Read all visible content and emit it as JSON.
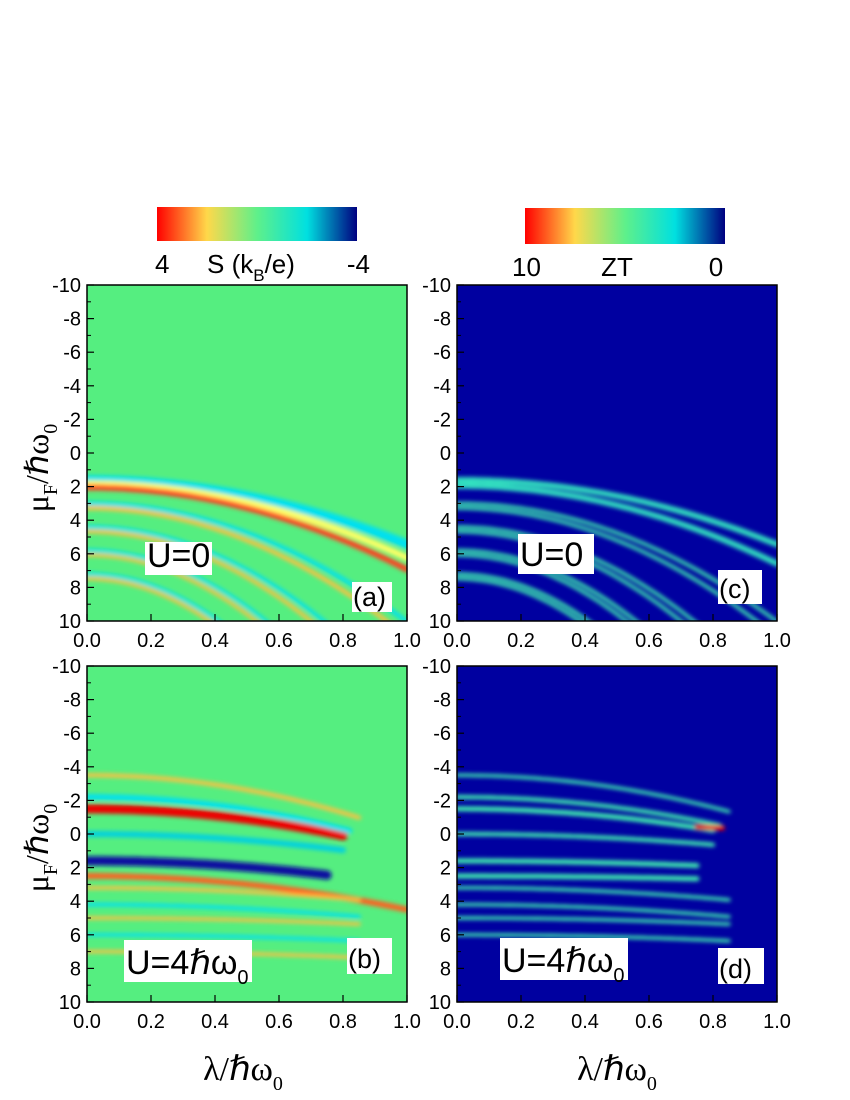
{
  "colorbars": [
    {
      "left_value": "4",
      "title_main": "S (k",
      "title_sub": "B",
      "title_end": "/e)",
      "right_value": "-4",
      "stops": [
        "#ff0000",
        "#ffd84a",
        "#5ff08a",
        "#00e0e0",
        "#000080"
      ]
    },
    {
      "left_value": "10",
      "title": "ZT",
      "right_value": "0",
      "stops": [
        "#ff0000",
        "#ffd84a",
        "#5ff08a",
        "#00e0e0",
        "#000080"
      ]
    }
  ],
  "axes": {
    "x_tick_labels": [
      "0.0",
      "0.2",
      "0.4",
      "0.6",
      "0.8",
      "1.0"
    ],
    "y_tick_labels": [
      "-10",
      "-8",
      "-6",
      "-4",
      "-2",
      "0",
      "2",
      "4",
      "6",
      "8",
      "10"
    ],
    "xlabel_main": "λ/ℏω",
    "xlabel_sub": "0",
    "ylabel_main": "μ",
    "ylabel_sub1": "F",
    "ylabel_mid": "/ℏω",
    "ylabel_sub2": "0"
  },
  "panels": [
    {
      "label": "(a)",
      "annotation_main": "U=0",
      "annotation_sub": ""
    },
    {
      "label": "(c)",
      "annotation_main": "U=0",
      "annotation_sub": ""
    },
    {
      "label": "(b)",
      "annotation_main": "U=4ℏω",
      "annotation_sub": "0"
    },
    {
      "label": "(d)",
      "annotation_main": "U=4ℏω",
      "annotation_sub": "0"
    }
  ],
  "chart_data": [
    {
      "type": "heatmap",
      "panel": "(a)",
      "quantity": "S (k_B/e)",
      "background": "#55ee80",
      "xlim": [
        0,
        1
      ],
      "ylim": [
        10,
        -10
      ],
      "bands": [
        {
          "n": 0,
          "color": "#00e0f0",
          "width": 0.55
        },
        {
          "n": 0.35,
          "color": "#ffff66",
          "width": 0.4
        },
        {
          "n": 0.65,
          "color": "#ff4020",
          "width": 0.35
        },
        {
          "n": 2,
          "color": "#00e0f0",
          "width": 0.25
        },
        {
          "n": 2.4,
          "color": "#ffc040",
          "width": 0.25
        },
        {
          "n": 4,
          "color": "#00e0f0",
          "width": 0.22
        },
        {
          "n": 4.4,
          "color": "#ffc040",
          "width": 0.22
        },
        {
          "n": 6,
          "color": "#00e0f0",
          "width": 0.2
        },
        {
          "n": 6.4,
          "color": "#ffc040",
          "width": 0.2
        },
        {
          "n": 8,
          "color": "#00e0f0",
          "width": 0.2
        },
        {
          "n": 8.4,
          "color": "#ffc040",
          "width": 0.2
        }
      ]
    },
    {
      "type": "heatmap",
      "panel": "(c)",
      "quantity": "ZT",
      "background": "#0000a0",
      "xlim": [
        0,
        1
      ],
      "ylim": [
        10,
        -10
      ],
      "bands": [
        {
          "n": 0,
          "color": "#30e0c0",
          "width": 0.35
        },
        {
          "n": 0.5,
          "color": "#30e0c0",
          "width": 0.35
        },
        {
          "n": 2,
          "color": "#40f0b0",
          "width": 0.2
        },
        {
          "n": 2.4,
          "color": "#40f0b0",
          "width": 0.2
        },
        {
          "n": 4,
          "color": "#40f0b0",
          "width": 0.2
        },
        {
          "n": 4.4,
          "color": "#40f0b0",
          "width": 0.2
        },
        {
          "n": 6,
          "color": "#40f0b0",
          "width": 0.2
        },
        {
          "n": 6.4,
          "color": "#40f0b0",
          "width": 0.2
        },
        {
          "n": 8,
          "color": "#40f0b0",
          "width": 0.2
        },
        {
          "n": 8.4,
          "color": "#40f0b0",
          "width": 0.2
        }
      ]
    },
    {
      "type": "heatmap",
      "panel": "(b)",
      "quantity": "S (k_B/e)",
      "background": "#55ee80",
      "xlim": [
        0,
        1
      ],
      "ylim": [
        10,
        -10
      ],
      "bands": [
        {
          "mu0": -2.5,
          "slope": -2.0,
          "color": "#ff6020",
          "width": 0.35,
          "xmax": 1.0
        },
        {
          "mu0": -1.6,
          "slope": -1.5,
          "color": "#0a10a0",
          "width": 0.55,
          "xmax": 0.75
        },
        {
          "mu0": 0.0,
          "slope": -1.5,
          "color": "#00d0e0",
          "width": 0.35,
          "xmax": 0.8
        },
        {
          "mu0": 1.5,
          "slope": -2.5,
          "color": "#ee0000",
          "width": 0.55,
          "xmax": 0.8
        },
        {
          "mu0": 2.2,
          "slope": -3.0,
          "color": "#00e0f0",
          "width": 0.35,
          "xmax": 0.82
        },
        {
          "mu0": 3.5,
          "slope": -3.5,
          "color": "#ffc040",
          "width": 0.25,
          "xmax": 0.85
        },
        {
          "mu0": -3.2,
          "slope": -1.0,
          "color": "#ffc040",
          "width": 0.22,
          "xmax": 0.85
        },
        {
          "mu0": -4.2,
          "slope": -1.0,
          "color": "#00e0f0",
          "width": 0.22,
          "xmax": 0.85
        },
        {
          "mu0": -5.0,
          "slope": -0.5,
          "color": "#ffc040",
          "width": 0.2,
          "xmax": 0.85
        },
        {
          "mu0": -6.0,
          "slope": -0.5,
          "color": "#00e0f0",
          "width": 0.2,
          "xmax": 0.85
        },
        {
          "mu0": -7.0,
          "slope": -0.5,
          "color": "#ffc040",
          "width": 0.2,
          "xmax": 0.85
        }
      ]
    },
    {
      "type": "heatmap",
      "panel": "(d)",
      "quantity": "ZT",
      "background": "#0000a0",
      "xlim": [
        0,
        1
      ],
      "ylim": [
        10,
        -10
      ],
      "bands": [
        {
          "mu0": -2.5,
          "slope": -0.3,
          "color": "#40f0b0",
          "width": 0.3,
          "xmax": 0.75
        },
        {
          "mu0": -1.6,
          "slope": -0.5,
          "color": "#40f0b0",
          "width": 0.3,
          "xmax": 0.75
        },
        {
          "mu0": 0.0,
          "slope": -1.0,
          "color": "#40f0b0",
          "width": 0.25,
          "xmax": 0.8
        },
        {
          "mu0": 1.5,
          "slope": -2.0,
          "color": "#40f0b0",
          "width": 0.3,
          "xmax": 0.8
        },
        {
          "mu0": 2.2,
          "slope": -2.5,
          "color": "#40f0b0",
          "width": 0.25,
          "xmax": 0.82
        },
        {
          "mu0": 3.5,
          "slope": -3.0,
          "color": "#40f0b0",
          "width": 0.2,
          "xmax": 0.85
        },
        {
          "mu0": -3.2,
          "slope": -1.0,
          "color": "#40f0b0",
          "width": 0.2,
          "xmax": 0.85
        },
        {
          "mu0": -4.2,
          "slope": -1.0,
          "color": "#40f0b0",
          "width": 0.2,
          "xmax": 0.85
        },
        {
          "mu0": -5.0,
          "slope": -0.5,
          "color": "#40f0b0",
          "width": 0.2,
          "xmax": 0.85
        },
        {
          "mu0": -6.0,
          "slope": -0.5,
          "color": "#40f0b0",
          "width": 0.2,
          "xmax": 0.85
        },
        {
          "mu0": 0.7,
          "slope": -0.5,
          "color": "#ee0000",
          "width": 0.3,
          "xmin": 0.75,
          "xmax": 0.83
        }
      ]
    }
  ]
}
